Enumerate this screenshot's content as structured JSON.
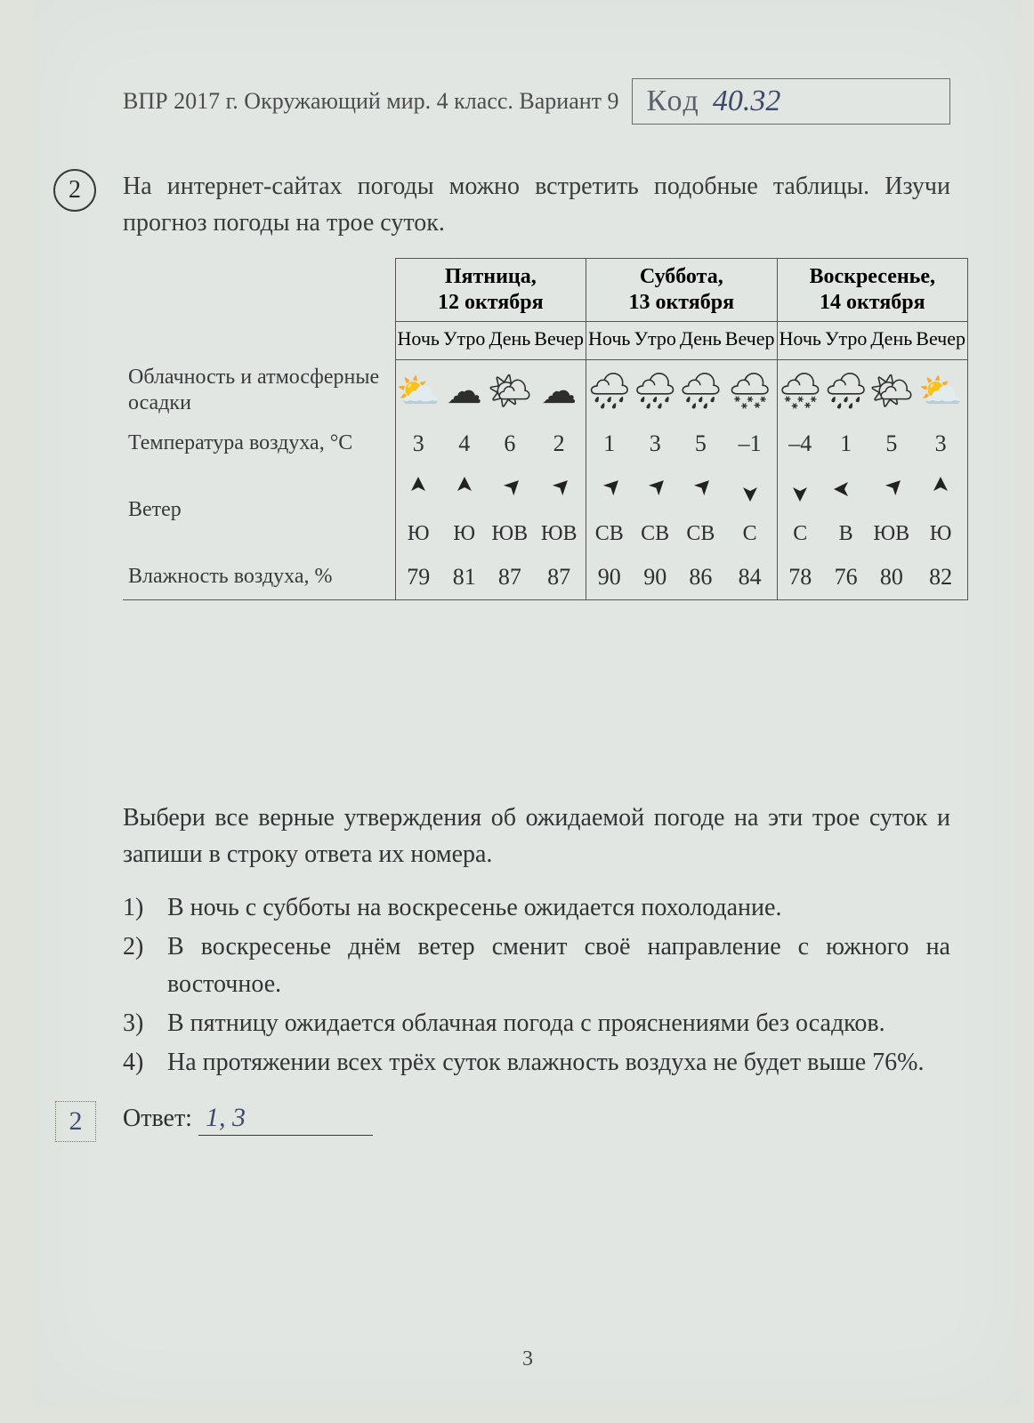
{
  "header": {
    "running": "ВПР 2017 г. Окружающий мир. 4 класс. Вариант 9",
    "code_label": "Код",
    "code_value": "40.32"
  },
  "question_number": "2",
  "prompt": "На интернет-сайтах погоды можно встретить подобные таблицы. Изучи прогноз погоды на трое суток.",
  "table": {
    "row_labels": {
      "clouds": "Облачность и атмосферные осадки",
      "temp": "Температура воздуха, °C",
      "wind": "Ветер",
      "humidity": "Влажность воздуха, %"
    },
    "days": [
      {
        "title_line1": "Пятница,",
        "title_line2": "12 октября"
      },
      {
        "title_line1": "Суббота,",
        "title_line2": "13 октября"
      },
      {
        "title_line1": "Воскресенье,",
        "title_line2": "14 октября"
      }
    ],
    "times_of_day": [
      "Ночь",
      "Утро",
      "День",
      "Вечер",
      "Ночь",
      "Утро",
      "День",
      "Вечер",
      "Ночь",
      "Утро",
      "День",
      "Вечер"
    ],
    "clouds": [
      "partly-cloudy",
      "cloud",
      "sun-cloud",
      "cloud",
      "rain",
      "rain",
      "rain",
      "snow",
      "snow",
      "rain",
      "sun-cloud",
      "partly-cloudy"
    ],
    "temperature": [
      "3",
      "4",
      "6",
      "2",
      "1",
      "3",
      "5",
      "–1",
      "–4",
      "1",
      "5",
      "3"
    ],
    "wind_arrows_deg": [
      0,
      0,
      45,
      45,
      45,
      45,
      45,
      180,
      180,
      270,
      45,
      0
    ],
    "wind_dirs": [
      "Ю",
      "Ю",
      "ЮВ",
      "ЮВ",
      "СВ",
      "СВ",
      "СВ",
      "С",
      "С",
      "В",
      "ЮВ",
      "Ю"
    ],
    "humidity": [
      "79",
      "81",
      "87",
      "87",
      "90",
      "90",
      "86",
      "84",
      "78",
      "76",
      "80",
      "82"
    ]
  },
  "below_prompt": "Выбери все верные утверждения об ожидаемой погоде на эти трое суток и запиши в строку ответа их номера.",
  "options": [
    "В ночь с субботы на воскресенье ожидается похолодание.",
    "В воскресенье днём ветер сменит своё направление с южного на восточное.",
    "В пятницу ожидается облачная погода с прояснениями без осадков.",
    "На протяжении всех трёх суток влажность воздуха не будет выше 76%."
  ],
  "option_nums": [
    "1)",
    "2)",
    "3)",
    "4)"
  ],
  "score_value": "2",
  "answer_label": "Ответ:",
  "answer_value": "1, 3",
  "page_number": "3",
  "colors": {
    "page_bg": "#e1e6e3",
    "text": "#333333",
    "border": "#555555",
    "handwriting": "#3e4a6a"
  },
  "icon_glyphs": {
    "partly-cloudy": "⛅",
    "cloud": "☁",
    "sun-cloud": "🌤",
    "rain": "🌧",
    "snow": "🌨"
  }
}
